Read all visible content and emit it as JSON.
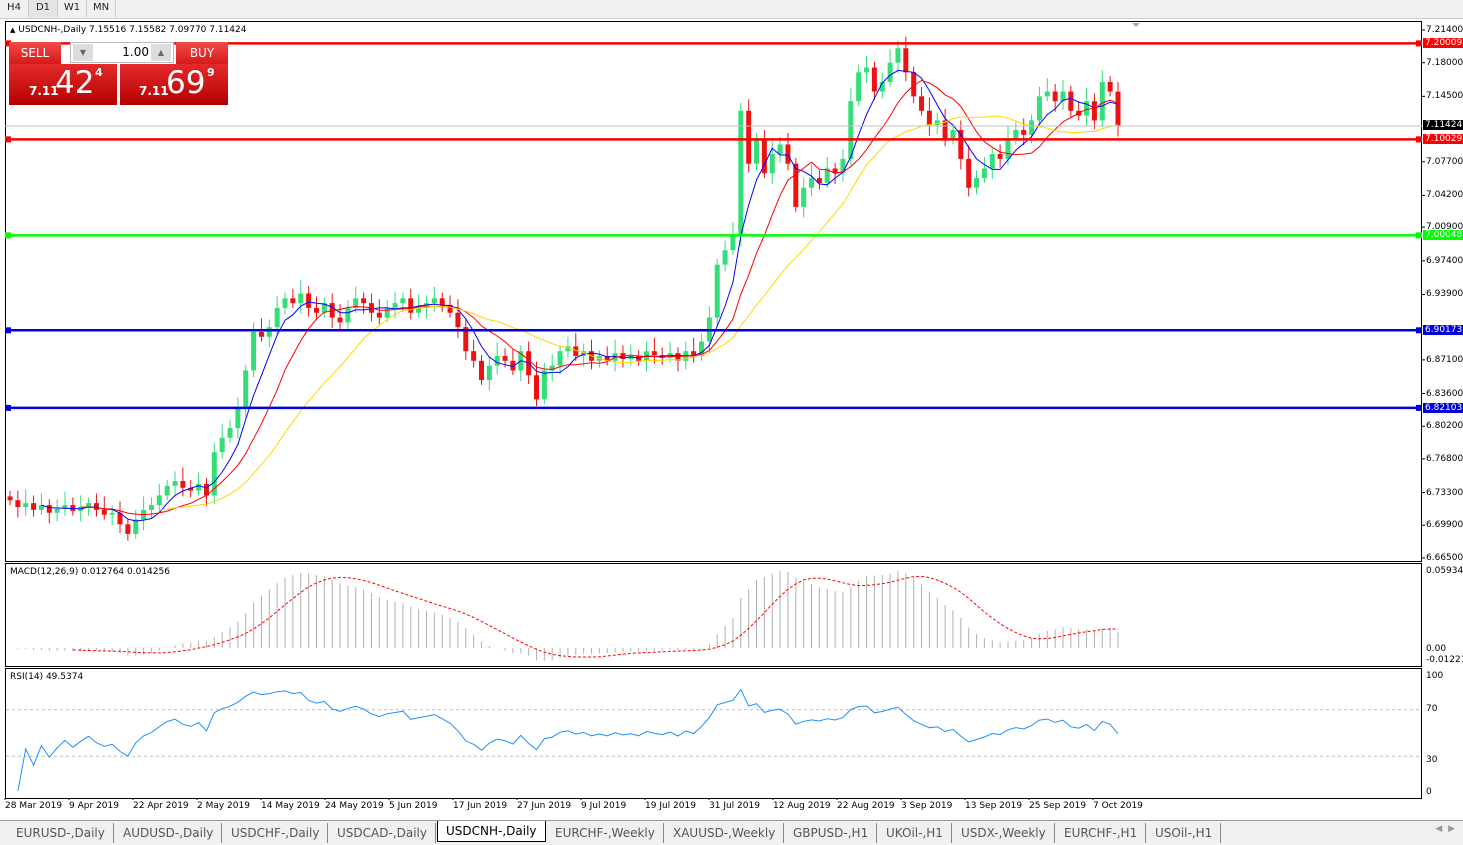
{
  "toolbar": {
    "timeframes": [
      "H4",
      "D1",
      "W1",
      "MN"
    ],
    "active": "D1"
  },
  "chart": {
    "title": "USDCNH-,Daily  7.15516 7.15582 7.09770 7.11424",
    "price_ticks": [
      "7.21400",
      "7.18000",
      "7.14500",
      "7.07700",
      "7.04200",
      "7.00900",
      "6.97400",
      "6.93900",
      "6.87100",
      "6.83600",
      "6.80200",
      "6.76800",
      "6.73300",
      "6.69900",
      "6.66500"
    ],
    "price_tick_values": [
      7.214,
      7.18,
      7.145,
      7.077,
      7.042,
      7.009,
      6.974,
      6.939,
      6.871,
      6.836,
      6.802,
      6.768,
      6.733,
      6.699,
      6.665
    ],
    "current_price": "7.11424",
    "hlines": [
      {
        "label": "7.20009",
        "value": 7.20009,
        "color": "#ff0000"
      },
      {
        "label": "7.10029",
        "value": 7.10029,
        "color": "#ff0000"
      },
      {
        "label": "7.00048",
        "value": 7.00048,
        "color": "#00ff00"
      },
      {
        "label": "6.90173",
        "value": 6.90173,
        "color": "#0000dd"
      },
      {
        "label": "6.82103",
        "value": 6.82103,
        "color": "#0000dd"
      }
    ],
    "dates": [
      "28 Mar 2019",
      "9 Apr 2019",
      "22 Apr 2019",
      "2 May 2019",
      "14 May 2019",
      "24 May 2019",
      "5 Jun 2019",
      "17 Jun 2019",
      "27 Jun 2019",
      "9 Jul 2019",
      "19 Jul 2019",
      "31 Jul 2019",
      "12 Aug 2019",
      "22 Aug 2019",
      "3 Sep 2019",
      "13 Sep 2019",
      "25 Sep 2019",
      "7 Oct 2019"
    ],
    "colors": {
      "bull": "#33dd77",
      "bear": "#ee1111",
      "ma_fast": "#0000ff",
      "ma_mid": "#ff0000",
      "ma_slow": "#ffd700"
    },
    "closes": [
      6.725,
      6.718,
      6.722,
      6.715,
      6.72,
      6.712,
      6.716,
      6.72,
      6.714,
      6.718,
      6.722,
      6.715,
      6.71,
      6.712,
      6.7,
      6.69,
      6.705,
      6.715,
      6.72,
      6.73,
      6.74,
      6.745,
      6.738,
      6.735,
      6.742,
      6.73,
      6.775,
      6.79,
      6.8,
      6.82,
      6.86,
      6.9,
      6.895,
      6.905,
      6.925,
      6.935,
      6.93,
      6.94,
      6.925,
      6.92,
      6.93,
      6.915,
      6.91,
      6.925,
      6.935,
      6.93,
      6.92,
      6.915,
      6.925,
      6.93,
      6.935,
      6.92,
      6.925,
      6.93,
      6.935,
      6.928,
      6.92,
      6.905,
      6.88,
      6.87,
      6.85,
      6.865,
      6.875,
      6.87,
      6.86,
      6.88,
      6.855,
      6.83,
      6.86,
      6.865,
      6.88,
      6.885,
      6.875,
      6.88,
      6.87,
      6.875,
      6.87,
      6.878,
      6.872,
      6.875,
      6.87,
      6.88,
      6.876,
      6.873,
      6.878,
      6.87,
      6.88,
      6.875,
      6.89,
      6.915,
      6.97,
      6.985,
      7.0,
      7.13,
      7.075,
      7.1,
      7.065,
      7.085,
      7.095,
      7.075,
      7.03,
      7.05,
      7.06,
      7.055,
      7.07,
      7.065,
      7.08,
      7.14,
      7.17,
      7.175,
      7.15,
      7.16,
      7.18,
      7.195,
      7.17,
      7.145,
      7.13,
      7.115,
      7.12,
      7.1,
      7.11,
      7.08,
      7.05,
      7.06,
      7.07,
      7.085,
      7.08,
      7.1,
      7.11,
      7.105,
      7.12,
      7.145,
      7.15,
      7.14,
      7.15,
      7.13,
      7.125,
      7.14,
      7.12,
      7.16,
      7.15,
      7.11424
    ]
  },
  "trade": {
    "sell_label": "SELL",
    "buy_label": "BUY",
    "lot": "1.00",
    "sell_prefix": "7.11",
    "sell_big": "42",
    "sell_sup": "4",
    "buy_prefix": "7.11",
    "buy_big": "69",
    "buy_sup": "9"
  },
  "macd": {
    "title": "MACD(12,26,9) 0.012764 0.014256",
    "ticks": [
      "0.059344",
      "0.00",
      "-0.012219"
    ]
  },
  "rsi": {
    "title": "RSI(14) 49.5374",
    "ticks": [
      "100",
      "70",
      "30",
      "0"
    ]
  },
  "tabs": [
    "EURUSD-,Daily",
    "AUDUSD-,Daily",
    "USDCHF-,Daily",
    "USDCAD-,Daily",
    "USDCNH-,Daily",
    "EURCHF-,Weekly",
    "XAUUSD-,Weekly",
    "GBPUSD-,H1",
    "UKOil-,H1",
    "USDX-,Weekly",
    "EURCHF-,H1",
    "USOil-,H1"
  ],
  "active_tab": "USDCNH-,Daily"
}
